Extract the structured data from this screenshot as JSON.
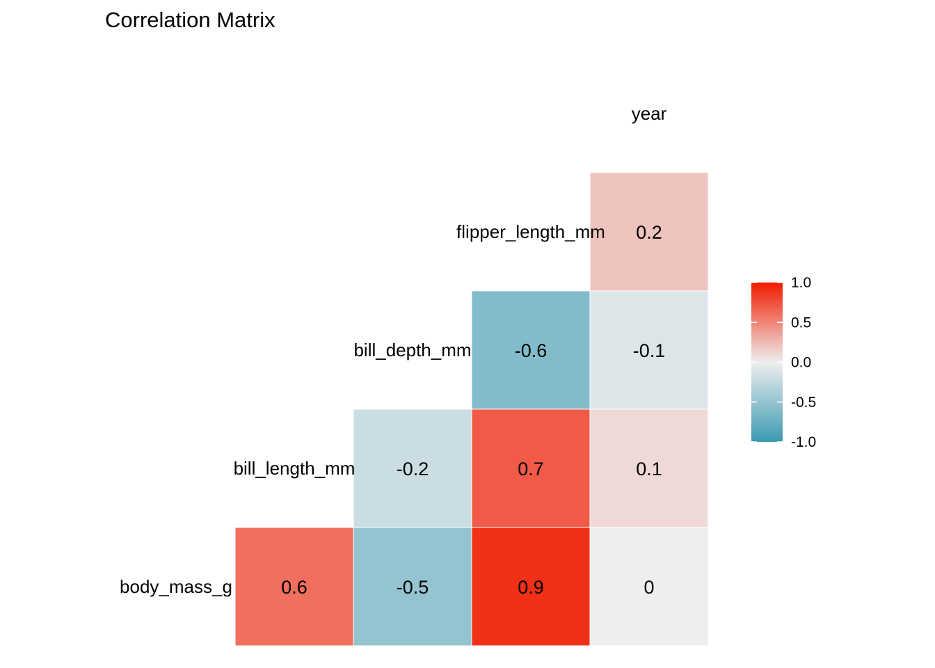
{
  "chart_data": {
    "type": "heatmap",
    "title": "Correlation Matrix",
    "variables": [
      "body_mass_g",
      "bill_length_mm",
      "bill_depth_mm",
      "flipper_length_mm",
      "year"
    ],
    "cells": [
      {
        "row": "flipper_length_mm",
        "col": "year",
        "value": 0.2,
        "label": "0.2"
      },
      {
        "row": "bill_depth_mm",
        "col": "flipper_length_mm",
        "value": -0.6,
        "label": "-0.6"
      },
      {
        "row": "bill_depth_mm",
        "col": "year",
        "value": -0.1,
        "label": "-0.1"
      },
      {
        "row": "bill_length_mm",
        "col": "bill_depth_mm",
        "value": -0.2,
        "label": "-0.2"
      },
      {
        "row": "bill_length_mm",
        "col": "flipper_length_mm",
        "value": 0.7,
        "label": "0.7"
      },
      {
        "row": "bill_length_mm",
        "col": "year",
        "value": 0.1,
        "label": "0.1"
      },
      {
        "row": "body_mass_g",
        "col": "bill_length_mm",
        "value": 0.6,
        "label": "0.6"
      },
      {
        "row": "body_mass_g",
        "col": "bill_depth_mm",
        "value": -0.5,
        "label": "-0.5"
      },
      {
        "row": "body_mass_g",
        "col": "flipper_length_mm",
        "value": 0.9,
        "label": "0.9"
      },
      {
        "row": "body_mass_g",
        "col": "year",
        "value": 0.0,
        "label": "0"
      }
    ],
    "color_scale": {
      "low": "#3A9AB2",
      "mid": "#EEEEEE",
      "high": "#F11B00",
      "limits": [
        -1,
        1
      ]
    },
    "legend": {
      "position": "right",
      "ticks": [
        "1.0",
        "0.5",
        "0.0",
        "-0.5",
        "-1.0"
      ]
    },
    "grid": false
  }
}
